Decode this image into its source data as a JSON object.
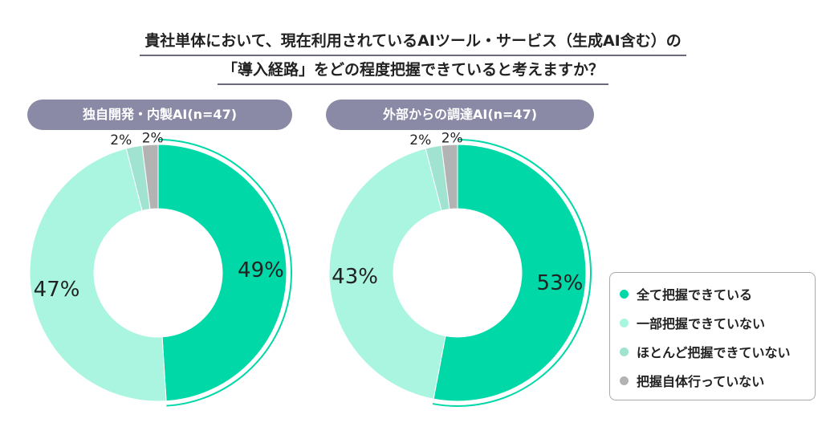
{
  "title_lines": [
    "貴社単体において、現在利用されているAIツール・サービス（生成AI含む）の",
    "「導入経路」をどの程度把握できていると考えますか？"
  ],
  "chart_data": [
    {
      "type": "pie",
      "subtype": "donut",
      "title": "独自開発・内製AI(n=47)",
      "categories": [
        "全て把握できている",
        "一部把握できていない",
        "ほとんど把握できていない",
        "把握自体行っていない"
      ],
      "values": [
        49,
        47,
        2,
        2
      ],
      "labels": [
        "49%",
        "47%",
        "2%",
        "2%"
      ]
    },
    {
      "type": "pie",
      "subtype": "donut",
      "title": "外部からの調達AI(n=47)",
      "categories": [
        "全て把握できている",
        "一部把握できていない",
        "ほとんど把握できていない",
        "把握自体行っていない"
      ],
      "values": [
        53,
        43,
        2,
        2
      ],
      "labels": [
        "53%",
        "43%",
        "2%",
        "2%"
      ]
    }
  ],
  "legend": [
    {
      "label": "全て把握できている",
      "color": "#00d8a8"
    },
    {
      "label": "一部把握できていない",
      "color": "#a9f5df"
    },
    {
      "label": "ほとんど把握できていない",
      "color": "#9fe3d0"
    },
    {
      "label": "把握自体行っていない",
      "color": "#b3b3b3"
    }
  ]
}
